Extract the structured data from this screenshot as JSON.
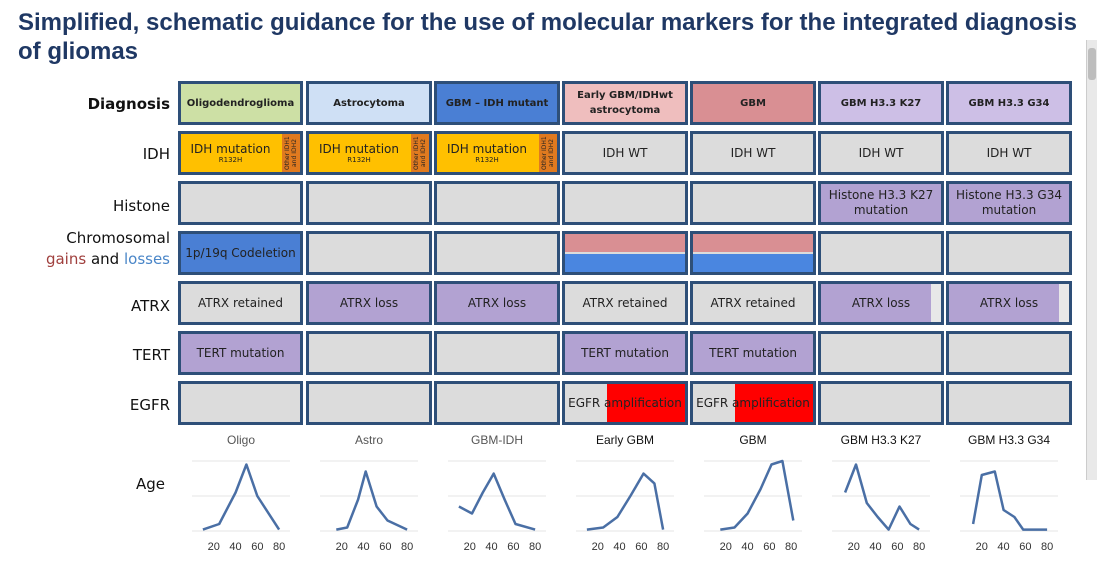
{
  "title": "Simplified, schematic guidance for the use of molecular markers for the integrated diagnosis of gliomas",
  "row_labels": {
    "diagnosis": "Diagnosis",
    "idh": "IDH",
    "histone": "Histone",
    "chromosomal_1": "Chromosomal",
    "chromosomal_gains": "gains",
    "chromosomal_and": "and",
    "chromosomal_losses": "losses",
    "atrx": "ATRX",
    "tert": "TERT",
    "egfr": "EGFR",
    "age": "Age"
  },
  "colors": {
    "border": "#2e4f78",
    "oligo": "#cde0a5",
    "astro": "#cfe0f5",
    "gbm_idh": "#4a7fd4",
    "early_gbm": "#efbebe",
    "gbm": "#d98f93",
    "h3": "#cdbfe6",
    "idh_mutant": "#ffc000",
    "idh_side": "#e07a1f",
    "purple": "#b2a2d2",
    "grey": "#dcdcdc",
    "codeletion": "#4a7fd4",
    "gain": "#d98f93",
    "loss": "#4a86e0",
    "egfr_amp": "#ff0000",
    "line": "#4a6fa5",
    "gains_text": "#a0403e",
    "losses_text": "#4a86c8"
  },
  "diagnosis": [
    "Oligodendroglioma",
    "Astrocytoma",
    "GBM – IDH mutant",
    "Early GBM/IDHwt astrocytoma",
    "GBM",
    "GBM H3.3 K27",
    "GBM H3.3 G34"
  ],
  "idh": {
    "mutation_label": "IDH mutation",
    "sub_label": "R132H",
    "side_label": "Other IDH1 and IDH2",
    "wt_label": "IDH WT"
  },
  "histone": [
    "",
    "",
    "",
    "",
    "",
    "Histone H3.3 K27 mutation",
    "Histone H3.3 G34 mutation"
  ],
  "chromosomal": {
    "codeletion": "1p/19q Codeletion"
  },
  "atrx": [
    "ATRX retained",
    "ATRX loss",
    "ATRX loss",
    "ATRX retained",
    "ATRX retained",
    "ATRX loss",
    "ATRX loss"
  ],
  "tert": [
    "TERT mutation",
    "",
    "",
    "TERT mutation",
    "TERT mutation",
    "",
    ""
  ],
  "egfr": {
    "label": "EGFR amplification"
  },
  "column_labels": [
    "Oligo",
    "Astro",
    "GBM-IDH",
    "Early GBM",
    "GBM",
    "GBM H3.3 K27",
    "GBM H3.3 G34"
  ],
  "age_plots": {
    "x_ticks": [
      20,
      40,
      60,
      80
    ],
    "xlim": [
      0,
      90
    ],
    "series": [
      {
        "x": [
          10,
          25,
          40,
          50,
          60,
          80
        ],
        "y": [
          0.02,
          0.1,
          0.55,
          0.95,
          0.5,
          0.02
        ]
      },
      {
        "x": [
          15,
          25,
          35,
          42,
          52,
          62,
          80
        ],
        "y": [
          0.02,
          0.05,
          0.45,
          0.85,
          0.35,
          0.15,
          0.02
        ]
      },
      {
        "x": [
          10,
          22,
          32,
          42,
          52,
          62,
          80
        ],
        "y": [
          0.35,
          0.25,
          0.55,
          0.82,
          0.45,
          0.1,
          0.02
        ]
      },
      {
        "x": [
          10,
          25,
          38,
          50,
          62,
          72,
          80
        ],
        "y": [
          0.02,
          0.05,
          0.2,
          0.5,
          0.82,
          0.68,
          0.02
        ]
      },
      {
        "x": [
          15,
          28,
          40,
          52,
          62,
          72,
          82
        ],
        "y": [
          0.02,
          0.05,
          0.25,
          0.6,
          0.95,
          1.0,
          0.15
        ]
      },
      {
        "x": [
          12,
          22,
          32,
          42,
          52,
          62,
          72,
          80
        ],
        "y": [
          0.55,
          0.95,
          0.4,
          0.2,
          0.02,
          0.35,
          0.1,
          0.02
        ]
      },
      {
        "x": [
          12,
          20,
          32,
          40,
          50,
          58,
          65,
          80
        ],
        "y": [
          0.1,
          0.8,
          0.85,
          0.3,
          0.2,
          0.02,
          0.02,
          0.02
        ]
      }
    ]
  }
}
